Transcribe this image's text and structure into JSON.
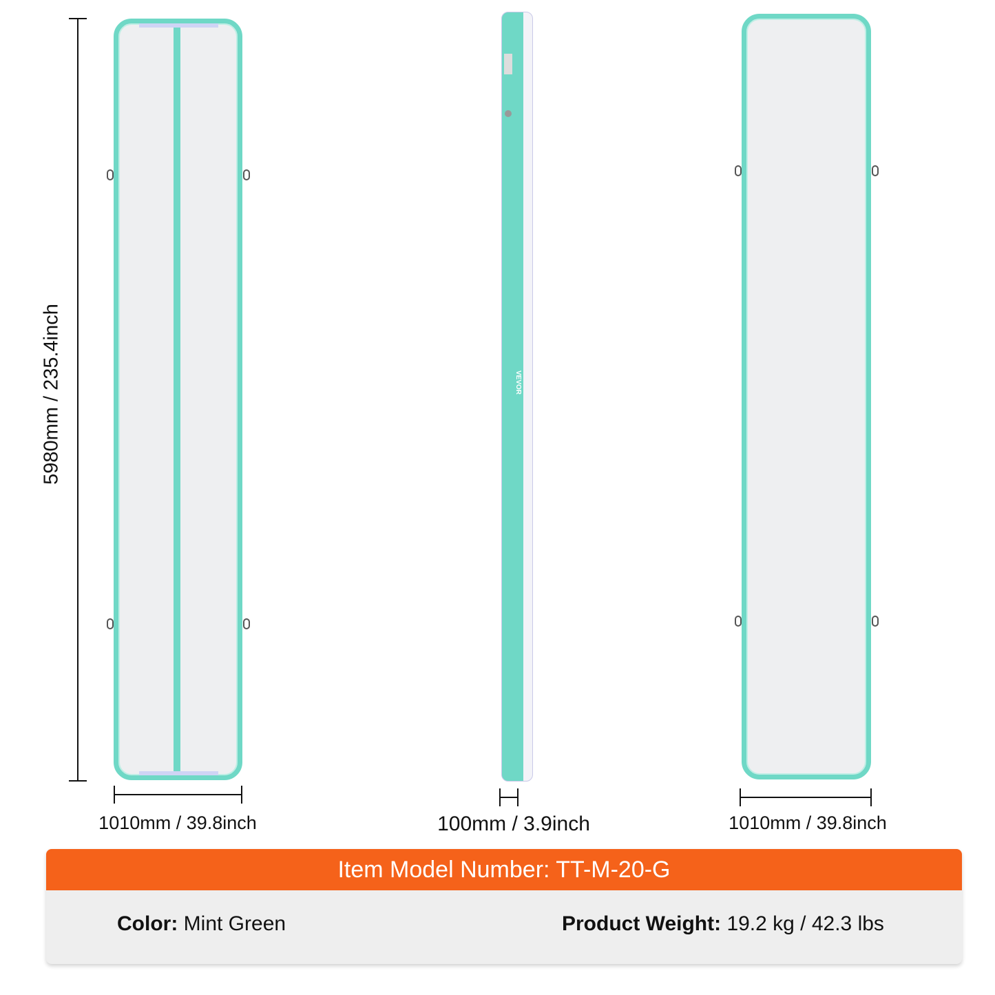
{
  "colors": {
    "accent": "#f5621a",
    "mat": "#6fd8c6",
    "surface": "#eeeff1",
    "banner_body": "#eeeeee"
  },
  "dimensions": {
    "length": "5980mm / 235.4inch",
    "width_left": "1010mm / 39.8inch",
    "thickness": "100mm / 3.9inch",
    "width_right": "1010mm / 39.8inch"
  },
  "side_brand": "VEVOR",
  "specs": {
    "model": "Item Model Number: TT-M-20-G",
    "color_label": "Color:",
    "color_value": "Mint Green",
    "weight_label": "Product Weight:",
    "weight_value": "19.2 kg / 42.3 lbs"
  }
}
